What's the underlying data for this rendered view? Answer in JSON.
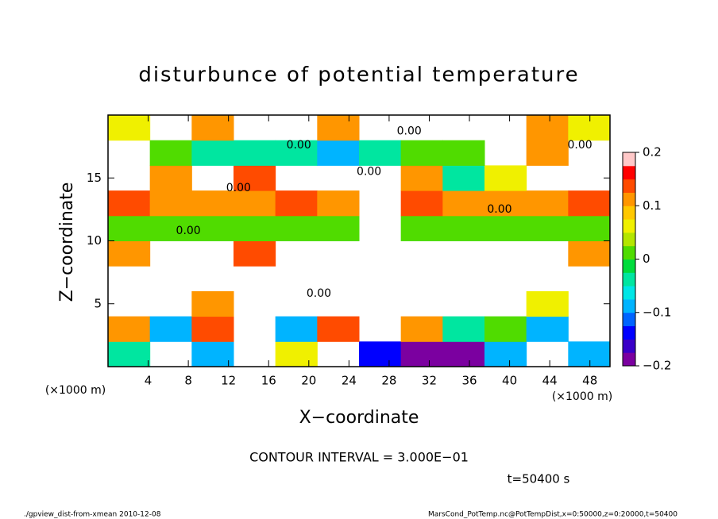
{
  "chart_data": {
    "type": "heatmap",
    "title": "disturbunce of potential temperature",
    "x_label": "X−coordinate",
    "y_label": "Z−coordinate",
    "x_unit": "(×1000 m)",
    "y_unit": "(×1000 m)",
    "contour_interval": "CONTOUR INTERVAL = 3.000E−01",
    "time_label": "t=50400 s",
    "footer_left": "./gpview_dist-from-xmean  2010-12-08",
    "footer_right": "MarsCond_PotTemp.nc@PotTempDist,x=0:50000,z=0:20000,t=50400",
    "xlim": [
      0,
      50
    ],
    "ylim": [
      0,
      20
    ],
    "xticks": [
      4,
      8,
      12,
      16,
      20,
      24,
      28,
      32,
      36,
      40,
      44,
      48
    ],
    "yticks": [
      5,
      10,
      15
    ],
    "clim": [
      -0.2,
      0.2
    ],
    "cticks": [
      {
        "value": 0.2,
        "label": "0.2"
      },
      {
        "value": 0.1,
        "label": "0.1"
      },
      0,
      {
        "value": -0.1,
        "label": "−0.1"
      },
      {
        "value": -0.2,
        "label": "−0.2"
      }
    ],
    "colormap": [
      "#7b00a0",
      "#3a00c8",
      "#0000ff",
      "#0064ff",
      "#00b4ff",
      "#00e6e6",
      "#00e6a0",
      "#00dc3c",
      "#50dc00",
      "#b4e600",
      "#f0f000",
      "#ffc800",
      "#ff9600",
      "#ff4b00",
      "#ff0000",
      "#ffc8c8"
    ],
    "z": [
      [
        -0.05,
        null,
        -0.1,
        null,
        0.05,
        null,
        -0.15,
        -0.2,
        -0.18,
        -0.1,
        null,
        -0.1
      ],
      [
        0.1,
        -0.1,
        0.15,
        null,
        -0.1,
        0.15,
        null,
        0.1,
        -0.05,
        0,
        -0.1,
        null
      ],
      [
        null,
        null,
        0.1,
        null,
        null,
        null,
        null,
        null,
        null,
        null,
        0.05,
        null
      ],
      [
        null,
        null,
        null,
        null,
        null,
        null,
        null,
        null,
        null,
        null,
        null,
        null
      ],
      [
        0.1,
        null,
        null,
        0.15,
        null,
        null,
        null,
        null,
        null,
        null,
        null,
        0.1
      ],
      [
        0.02,
        0.02,
        0.02,
        0.02,
        0.02,
        0.02,
        null,
        0.02,
        0.02,
        0.02,
        0.02,
        0.02
      ],
      [
        0.15,
        0.12,
        0.1,
        0.1,
        0.15,
        0.12,
        null,
        0.15,
        0.1,
        0.12,
        0.1,
        0.15
      ],
      [
        null,
        0.1,
        null,
        0.15,
        null,
        null,
        null,
        0.1,
        -0.05,
        0.05,
        null,
        null
      ],
      [
        null,
        0,
        -0.05,
        -0.05,
        -0.05,
        -0.1,
        -0.05,
        0,
        0,
        null,
        0.1,
        null
      ],
      [
        0.05,
        null,
        0.1,
        null,
        null,
        0.1,
        null,
        null,
        null,
        null,
        0.1,
        0.05
      ]
    ],
    "contour_labels": [
      {
        "text": "0.00",
        "x": 19,
        "z": 17.6
      },
      {
        "text": "0.00",
        "x": 26,
        "z": 15.5
      },
      {
        "text": "0.00",
        "x": 30,
        "z": 18.7
      },
      {
        "text": "0.00",
        "x": 13,
        "z": 14.2
      },
      {
        "text": "0.00",
        "x": 39,
        "z": 12.5
      },
      {
        "text": "0.00",
        "x": 8,
        "z": 10.8
      },
      {
        "text": "0.00",
        "x": 21,
        "z": 5.8
      },
      {
        "text": "0.00",
        "x": 47,
        "z": 17.6
      }
    ]
  }
}
